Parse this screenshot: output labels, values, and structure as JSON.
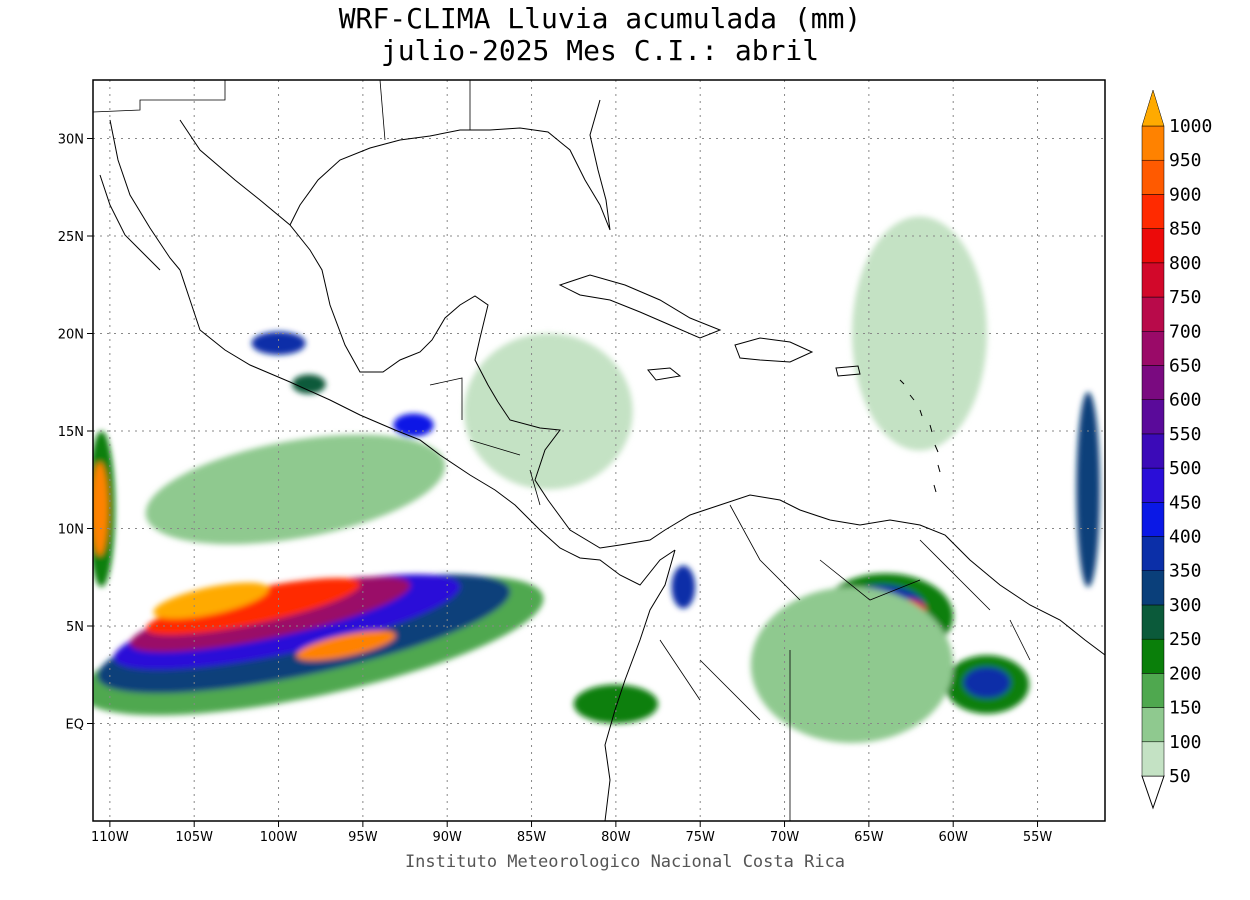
{
  "title_line1": "WRF-CLIMA Lluvia acumulada (mm)",
  "title_line2": "julio-2025 Mes C.I.: abril",
  "credit": "Instituto Meteorologico Nacional Costa Rica",
  "map": {
    "lon_range": [
      -111,
      -51
    ],
    "lat_range": [
      -5,
      33
    ],
    "lon_ticks": [
      {
        "v": -110,
        "label": "110W"
      },
      {
        "v": -105,
        "label": "105W"
      },
      {
        "v": -100,
        "label": "100W"
      },
      {
        "v": -95,
        "label": "95W"
      },
      {
        "v": -90,
        "label": "90W"
      },
      {
        "v": -85,
        "label": "85W"
      },
      {
        "v": -80,
        "label": "80W"
      },
      {
        "v": -75,
        "label": "75W"
      },
      {
        "v": -70,
        "label": "70W"
      },
      {
        "v": -65,
        "label": "65W"
      },
      {
        "v": -60,
        "label": "60W"
      },
      {
        "v": -55,
        "label": "55W"
      }
    ],
    "lat_ticks": [
      {
        "v": 0,
        "label": "EQ"
      },
      {
        "v": 5,
        "label": "5N"
      },
      {
        "v": 10,
        "label": "10N"
      },
      {
        "v": 15,
        "label": "15N"
      },
      {
        "v": 20,
        "label": "20N"
      },
      {
        "v": 25,
        "label": "25N"
      },
      {
        "v": 30,
        "label": "30N"
      }
    ],
    "grid": true
  },
  "colorbar": {
    "levels": [
      "50",
      "100",
      "150",
      "200",
      "250",
      "300",
      "350",
      "400",
      "450",
      "500",
      "550",
      "600",
      "650",
      "700",
      "750",
      "800",
      "850",
      "900",
      "950",
      "1000"
    ],
    "colors": [
      "#c4e2c4",
      "#8fc98f",
      "#4fa84f",
      "#0a7f0a",
      "#0b5a3a",
      "#0a3f7a",
      "#0b2fa8",
      "#0a18e6",
      "#2a0ed8",
      "#3b0ab8",
      "#5a0a9a",
      "#7a0a80",
      "#9a0a68",
      "#b80a4a",
      "#d2082a",
      "#ec0a0a",
      "#ff2a00",
      "#ff5a00",
      "#ff8200",
      "#ffaa00"
    ]
  },
  "rain_zones": [
    {
      "lon": -98,
      "lat": 4,
      "rx": 14,
      "ry": 2.6,
      "rot": -12,
      "level": 2
    },
    {
      "lon": -98.5,
      "lat": 4.6,
      "rx": 12.5,
      "ry": 2.1,
      "rot": -12,
      "level": 5
    },
    {
      "lon": -99.5,
      "lat": 5.2,
      "rx": 10.5,
      "ry": 1.6,
      "rot": -12,
      "level": 8
    },
    {
      "lon": -100.5,
      "lat": 5.6,
      "rx": 8.5,
      "ry": 1.2,
      "rot": -12,
      "level": 12
    },
    {
      "lon": -101.5,
      "lat": 6,
      "rx": 6.5,
      "ry": 0.9,
      "rot": -12,
      "level": 16
    },
    {
      "lon": -104,
      "lat": 6.3,
      "rx": 3.5,
      "ry": 0.7,
      "rot": -12,
      "level": 19
    },
    {
      "lon": -96,
      "lat": 4,
      "rx": 3,
      "ry": 0.55,
      "rot": -12,
      "level": 18
    },
    {
      "lon": -110.5,
      "lat": 11,
      "rx": 0.8,
      "ry": 4,
      "rot": 0,
      "level": 3
    },
    {
      "lon": -110.6,
      "lat": 11,
      "rx": 0.5,
      "ry": 2.4,
      "rot": 0,
      "level": 18
    },
    {
      "lon": -99,
      "lat": 12,
      "rx": 9,
      "ry": 2.5,
      "rot": -10,
      "level": 1
    },
    {
      "lon": -92,
      "lat": 15.3,
      "rx": 1.2,
      "ry": 0.6,
      "rot": 0,
      "level": 7
    },
    {
      "lon": -100,
      "lat": 19.5,
      "rx": 1.6,
      "ry": 0.6,
      "rot": 0,
      "level": 6
    },
    {
      "lon": -98.2,
      "lat": 17.4,
      "rx": 1,
      "ry": 0.5,
      "rot": 0,
      "level": 4
    },
    {
      "lon": -76,
      "lat": 7,
      "rx": 0.7,
      "ry": 1.1,
      "rot": 0,
      "level": 6
    },
    {
      "lon": -64,
      "lat": 5.5,
      "rx": 4,
      "ry": 2.2,
      "rot": 0,
      "level": 3
    },
    {
      "lon": -64.2,
      "lat": 5.8,
      "rx": 2.6,
      "ry": 1.3,
      "rot": 0,
      "level": 6
    },
    {
      "lon": -63,
      "lat": 5.8,
      "rx": 1.4,
      "ry": 0.6,
      "rot": 0,
      "level": 15
    },
    {
      "lon": -58,
      "lat": 2,
      "rx": 2.5,
      "ry": 1.5,
      "rot": 0,
      "level": 3
    },
    {
      "lon": -58,
      "lat": 2.1,
      "rx": 1.4,
      "ry": 0.8,
      "rot": 0,
      "level": 6
    },
    {
      "lon": -66,
      "lat": 3,
      "rx": 6,
      "ry": 4,
      "rot": 0,
      "level": 1
    },
    {
      "lon": -62,
      "lat": 20,
      "rx": 4,
      "ry": 6,
      "rot": 0,
      "level": 0
    },
    {
      "lon": -84,
      "lat": 16,
      "rx": 5,
      "ry": 4,
      "rot": 0,
      "level": 0
    },
    {
      "lon": -80,
      "lat": 1,
      "rx": 2.5,
      "ry": 1,
      "rot": 0,
      "level": 3
    },
    {
      "lon": -52,
      "lat": 12,
      "rx": 0.7,
      "ry": 5,
      "rot": 0,
      "level": 5
    }
  ]
}
